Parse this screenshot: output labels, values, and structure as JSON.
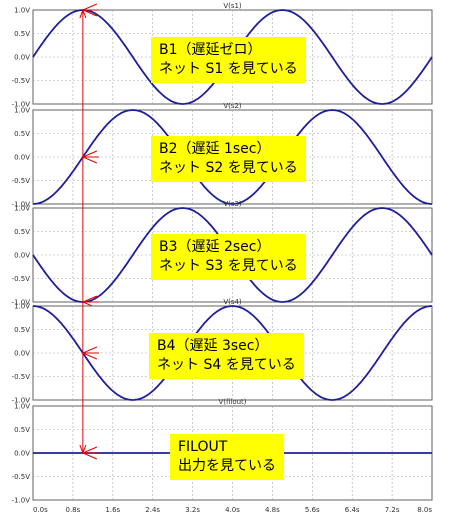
{
  "chart_data": {
    "type": "line",
    "x_unit": "s",
    "xlim": [
      0.0,
      8.0
    ],
    "x_ticks": [
      "0.0s",
      "0.8s",
      "1.6s",
      "2.4s",
      "3.2s",
      "4.0s",
      "4.8s",
      "5.6s",
      "6.4s",
      "7.2s",
      "8.0s"
    ],
    "y_ticks": [
      "1.0V",
      "0.5V",
      "0.0V",
      "-0.5V",
      "-1.0V"
    ],
    "ylim": [
      -1.0,
      1.0
    ],
    "grid": true,
    "line_color": "#1e1e9c",
    "marker_color": "#e00000",
    "cursor_x": 1.0,
    "panels": [
      {
        "title": "V(s1)",
        "series": {
          "name": "V(s1)",
          "function": "sin(2*pi*0.25*t)",
          "delay_s": 0,
          "amplitude": 1.0,
          "frequency_hz": 0.25
        },
        "marker_y": 1.0,
        "note": {
          "line1": "B1（遅延ゼロ）",
          "line2": "ネット S1 を見ている"
        }
      },
      {
        "title": "V(s2)",
        "series": {
          "name": "V(s2)",
          "function": "sin(2*pi*0.25*(t-1))",
          "delay_s": 1,
          "amplitude": 1.0,
          "frequency_hz": 0.25
        },
        "marker_y": 0.0,
        "note": {
          "line1": "B2（遅延 1sec）",
          "line2": "ネット S2 を見ている"
        }
      },
      {
        "title": "V(s3)",
        "series": {
          "name": "V(s3)",
          "function": "sin(2*pi*0.25*(t-2))",
          "delay_s": 2,
          "amplitude": 1.0,
          "frequency_hz": 0.25
        },
        "marker_y": -1.0,
        "note": {
          "line1": "B3（遅延 2sec）",
          "line2": "ネット S3 を見ている"
        }
      },
      {
        "title": "V(s4)",
        "series": {
          "name": "V(s4)",
          "function": "sin(2*pi*0.25*(t-3))",
          "delay_s": 3,
          "amplitude": 1.0,
          "frequency_hz": 0.25
        },
        "marker_y": 0.0,
        "note": {
          "line1": "B4（遅延 3sec）",
          "line2": "ネット S4 を見ている"
        }
      },
      {
        "title": "V(filout)",
        "series": {
          "name": "V(filout)",
          "function": "0",
          "delay_s": null,
          "amplitude": 0.0,
          "frequency_hz": 0
        },
        "marker_y": 0.0,
        "note": {
          "line1": "FILOUT",
          "line2": "出力を見ている"
        }
      }
    ]
  }
}
